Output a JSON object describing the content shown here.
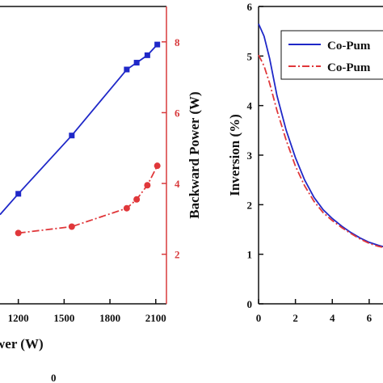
{
  "colors": {
    "blue": "#1f28c8",
    "red": "#e0373a",
    "axis": "#111111",
    "right_axis": "#d83a3c"
  },
  "chart_data": [
    {
      "type": "line",
      "xlabel": "wer (W)",
      "ylabel_right": "Backward Power (W)",
      "x_ticks": [
        1200,
        1500,
        1800,
        2100
      ],
      "y_right_ticks": [
        2,
        4,
        6,
        8
      ],
      "xlim": [
        1080,
        2170
      ],
      "y_right_lim": [
        0.6,
        9.0
      ],
      "y_left_lim": [
        0,
        100
      ],
      "partial_tick_text": "0",
      "series": [
        {
          "color": "blue",
          "marker": "square",
          "axis": "left",
          "x": [
            1080,
            1200,
            1550,
            1910,
            1975,
            2045,
            2110
          ],
          "y": [
            30,
            37,
            56.6,
            78.8,
            81.1,
            83.6,
            87.2
          ]
        },
        {
          "color": "red",
          "marker": "circle",
          "axis": "right",
          "dashed": true,
          "x": [
            1200,
            1550,
            1910,
            1975,
            2045,
            2110
          ],
          "y": [
            2.6,
            2.78,
            3.3,
            3.55,
            3.95,
            4.5
          ]
        }
      ]
    },
    {
      "type": "line",
      "ylabel": "Inversion (%)",
      "x_ticks": [
        0,
        2,
        4,
        6
      ],
      "y_ticks": [
        0,
        1,
        2,
        3,
        4,
        5,
        6
      ],
      "xlim": [
        0,
        7.1
      ],
      "ylim": [
        0,
        6
      ],
      "legend": {
        "position": "top-right",
        "entries": [
          "Co-Pum",
          "Co-Pum"
        ]
      },
      "series": [
        {
          "color": "blue",
          "dashed": false,
          "x": [
            0,
            0.3,
            0.6,
            1,
            1.5,
            2,
            2.5,
            3,
            3.5,
            4,
            4.5,
            5,
            5.5,
            6,
            6.5,
            7,
            7.1
          ],
          "y": [
            5.65,
            5.4,
            4.95,
            4.2,
            3.5,
            2.95,
            2.5,
            2.15,
            1.9,
            1.72,
            1.57,
            1.44,
            1.33,
            1.24,
            1.18,
            1.13,
            1.12
          ]
        },
        {
          "color": "red",
          "dashed": true,
          "x": [
            0,
            0.3,
            0.6,
            1,
            1.5,
            2,
            2.5,
            3,
            3.5,
            4,
            4.5,
            5,
            5.5,
            6,
            6.5,
            7,
            7.1
          ],
          "y": [
            5.02,
            4.8,
            4.45,
            3.9,
            3.3,
            2.78,
            2.38,
            2.07,
            1.84,
            1.68,
            1.54,
            1.42,
            1.31,
            1.22,
            1.16,
            1.12,
            1.11
          ]
        }
      ]
    }
  ]
}
